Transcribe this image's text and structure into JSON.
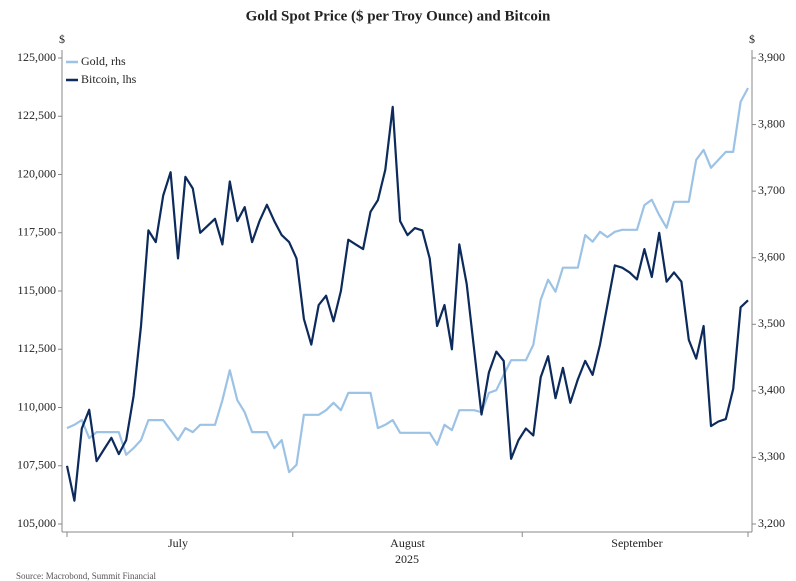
{
  "chart_data": {
    "type": "line",
    "title": "Gold Spot Price ($ per Troy Ounce) and Bitcoin",
    "y_label": "$",
    "y2_label": "$",
    "x_label": "2025",
    "source": "Source: Macrobond, Summit Financial",
    "grid": false,
    "legend": "top-left",
    "categories": [
      null,
      null,
      null,
      null,
      null,
      null,
      null,
      null,
      null,
      null,
      null,
      null,
      null,
      null,
      null,
      "July",
      null,
      null,
      null,
      null,
      null,
      null,
      null,
      null,
      null,
      null,
      null,
      null,
      null,
      null,
      null,
      null,
      null,
      null,
      null,
      null,
      null,
      null,
      null,
      null,
      null,
      null,
      null,
      null,
      null,
      null,
      "August",
      null,
      null,
      null,
      null,
      null,
      null,
      null,
      null,
      null,
      null,
      null,
      null,
      null,
      null,
      null,
      null,
      null,
      null,
      null,
      null,
      null,
      null,
      null,
      null,
      null,
      null,
      null,
      null,
      null,
      null,
      "September",
      null,
      null,
      null,
      null,
      null,
      null,
      null,
      null,
      null,
      null,
      null,
      null,
      null,
      null,
      null
    ],
    "ylim": [
      105000,
      125000
    ],
    "yticks": [
      {
        "value": 105000,
        "label": "105,000"
      },
      {
        "value": 107500,
        "label": "107,500"
      },
      {
        "value": 110000,
        "label": "110,000"
      },
      {
        "value": 112500,
        "label": "112,500"
      },
      {
        "value": 115000,
        "label": "115,000"
      },
      {
        "value": 117500,
        "label": "117,500"
      },
      {
        "value": 120000,
        "label": "120,000"
      },
      {
        "value": 122500,
        "label": "122,500"
      },
      {
        "value": 125000,
        "label": "125,000"
      }
    ],
    "y2lim": [
      3200,
      3900
    ],
    "y2ticks": [
      {
        "value": 3200,
        "label": "3,200"
      },
      {
        "value": 3300,
        "label": "3,300"
      },
      {
        "value": 3400,
        "label": "3,400"
      },
      {
        "value": 3500,
        "label": "3,500"
      },
      {
        "value": 3600,
        "label": "3,600"
      },
      {
        "value": 3700,
        "label": "3,700"
      },
      {
        "value": 3800,
        "label": "3,800"
      },
      {
        "value": 3900,
        "label": "3,900"
      }
    ],
    "series": [
      {
        "name": "Gold, rhs",
        "color": "#9cc3e5",
        "axis": "y2",
        "values": [
          3344,
          3349,
          3356,
          3329,
          3338,
          3338,
          3338,
          3338,
          3304,
          3314,
          3326,
          3356,
          3356,
          3356,
          3341,
          3326,
          3344,
          3338,
          3349,
          3349,
          3349,
          3386,
          3431,
          3386,
          3368,
          3338,
          3338,
          3338,
          3314,
          3326,
          3278,
          3289,
          3364,
          3364,
          3364,
          3371,
          3382,
          3371,
          3397,
          3397,
          3397,
          3397,
          3344,
          3349,
          3356,
          3337,
          3337,
          3337,
          3337,
          3337,
          3319,
          3349,
          3341,
          3371,
          3371,
          3371,
          3368,
          3397,
          3401,
          3424,
          3446,
          3446,
          3446,
          3469,
          3537,
          3567,
          3549,
          3585,
          3585,
          3585,
          3634,
          3624,
          3639,
          3631,
          3639,
          3642,
          3642,
          3642,
          3679,
          3687,
          3664,
          3645,
          3684,
          3684,
          3684,
          3747,
          3762,
          3735,
          3747,
          3759,
          3759,
          3834,
          3855
        ]
      },
      {
        "name": "Bitcoin, lhs",
        "color": "#0c2a5b",
        "axis": "y",
        "values": [
          107500,
          106000,
          109100,
          109900,
          107700,
          108200,
          108700,
          108000,
          108600,
          110500,
          113500,
          117600,
          117100,
          119100,
          120100,
          116400,
          119900,
          119400,
          117500,
          117800,
          118100,
          117000,
          119700,
          118000,
          118600,
          117100,
          118000,
          118700,
          118000,
          117400,
          117100,
          116400,
          113800,
          112700,
          114400,
          114800,
          113700,
          115000,
          117200,
          117000,
          116800,
          118400,
          118900,
          120200,
          122900,
          118000,
          117400,
          117700,
          117600,
          116400,
          113500,
          114400,
          112500,
          117000,
          115300,
          112500,
          109700,
          111500,
          112400,
          112000,
          107800,
          108600,
          109100,
          108800,
          111300,
          112200,
          110400,
          111700,
          110200,
          111200,
          112000,
          111400,
          112700,
          114400,
          116100,
          116000,
          115800,
          115500,
          116800,
          115600,
          117500,
          115400,
          115800,
          115400,
          112900,
          112100,
          113500,
          109200,
          109400,
          109500,
          110800,
          114300,
          114600
        ]
      }
    ]
  }
}
